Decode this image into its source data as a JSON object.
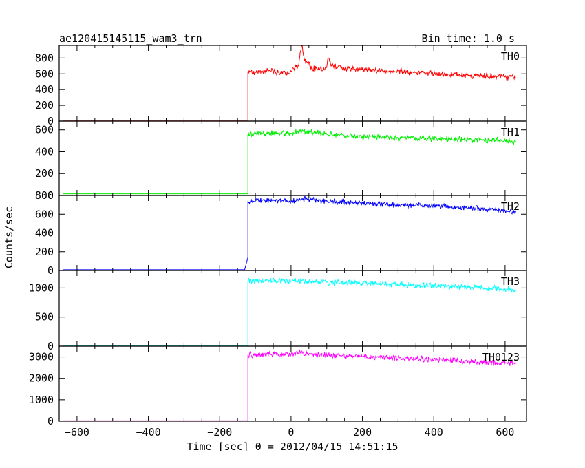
{
  "title": "ae120415145115_wam3_trn",
  "bin_time_label": "Bin time: 1.0 s",
  "ylabel": "Counts/sec",
  "xlabel": "Time [sec] 0 = 2012/04/15 14:51:15",
  "chart_data": {
    "type": "line",
    "x_ticks": [
      -600,
      -400,
      -200,
      0,
      200,
      400,
      600
    ],
    "xlim": [
      -650,
      660
    ],
    "grid": false,
    "series": [
      {
        "name": "TH0",
        "color": "#ff0000",
        "ylim": [
          0,
          960
        ],
        "y_ticks": [
          0,
          200,
          400,
          600,
          800
        ],
        "points": [
          [
            -640,
            2
          ],
          [
            -121,
            2
          ],
          [
            -121,
            620
          ],
          [
            -60,
            640
          ],
          [
            -30,
            600
          ],
          [
            0,
            630
          ],
          [
            20,
            700
          ],
          [
            25,
            860
          ],
          [
            30,
            960
          ],
          [
            38,
            780
          ],
          [
            60,
            660
          ],
          [
            100,
            680
          ],
          [
            105,
            800
          ],
          [
            112,
            700
          ],
          [
            200,
            650
          ],
          [
            300,
            630
          ],
          [
            400,
            600
          ],
          [
            500,
            580
          ],
          [
            600,
            560
          ],
          [
            630,
            550
          ]
        ]
      },
      {
        "name": "TH1",
        "color": "#00ee00",
        "ylim": [
          0,
          680
        ],
        "y_ticks": [
          0,
          200,
          400,
          600
        ],
        "points": [
          [
            -640,
            15
          ],
          [
            -121,
            15
          ],
          [
            -121,
            560
          ],
          [
            -60,
            570
          ],
          [
            0,
            570
          ],
          [
            30,
            590
          ],
          [
            100,
            560
          ],
          [
            200,
            540
          ],
          [
            300,
            530
          ],
          [
            400,
            520
          ],
          [
            500,
            510
          ],
          [
            600,
            500
          ],
          [
            630,
            490
          ]
        ]
      },
      {
        "name": "TH2",
        "color": "#0000ff",
        "ylim": [
          0,
          800
        ],
        "y_ticks": [
          0,
          200,
          400,
          600,
          800
        ],
        "points": [
          [
            -640,
            8
          ],
          [
            -130,
            8
          ],
          [
            -121,
            140
          ],
          [
            -121,
            740
          ],
          [
            -60,
            750
          ],
          [
            0,
            740
          ],
          [
            30,
            760
          ],
          [
            100,
            740
          ],
          [
            200,
            720
          ],
          [
            300,
            700
          ],
          [
            400,
            690
          ],
          [
            500,
            670
          ],
          [
            600,
            640
          ],
          [
            630,
            620
          ]
        ]
      },
      {
        "name": "TH3",
        "color": "#00ffff",
        "ylim": [
          0,
          1300
        ],
        "y_ticks": [
          0,
          500,
          1000
        ],
        "points": [
          [
            -640,
            5
          ],
          [
            -121,
            5
          ],
          [
            -121,
            1120
          ],
          [
            -60,
            1130
          ],
          [
            0,
            1120
          ],
          [
            100,
            1100
          ],
          [
            200,
            1080
          ],
          [
            300,
            1060
          ],
          [
            400,
            1040
          ],
          [
            500,
            1010
          ],
          [
            600,
            980
          ],
          [
            630,
            960
          ]
        ]
      },
      {
        "name": "TH0123",
        "color": "#ff00ff",
        "ylim": [
          0,
          3500
        ],
        "y_ticks": [
          0,
          1000,
          2000,
          3000
        ],
        "points": [
          [
            -640,
            20
          ],
          [
            -121,
            20
          ],
          [
            -121,
            3100
          ],
          [
            -60,
            3130
          ],
          [
            0,
            3110
          ],
          [
            30,
            3250
          ],
          [
            40,
            3120
          ],
          [
            100,
            3090
          ],
          [
            200,
            3000
          ],
          [
            300,
            2940
          ],
          [
            400,
            2880
          ],
          [
            500,
            2790
          ],
          [
            600,
            2700
          ],
          [
            630,
            2680
          ]
        ]
      }
    ]
  }
}
